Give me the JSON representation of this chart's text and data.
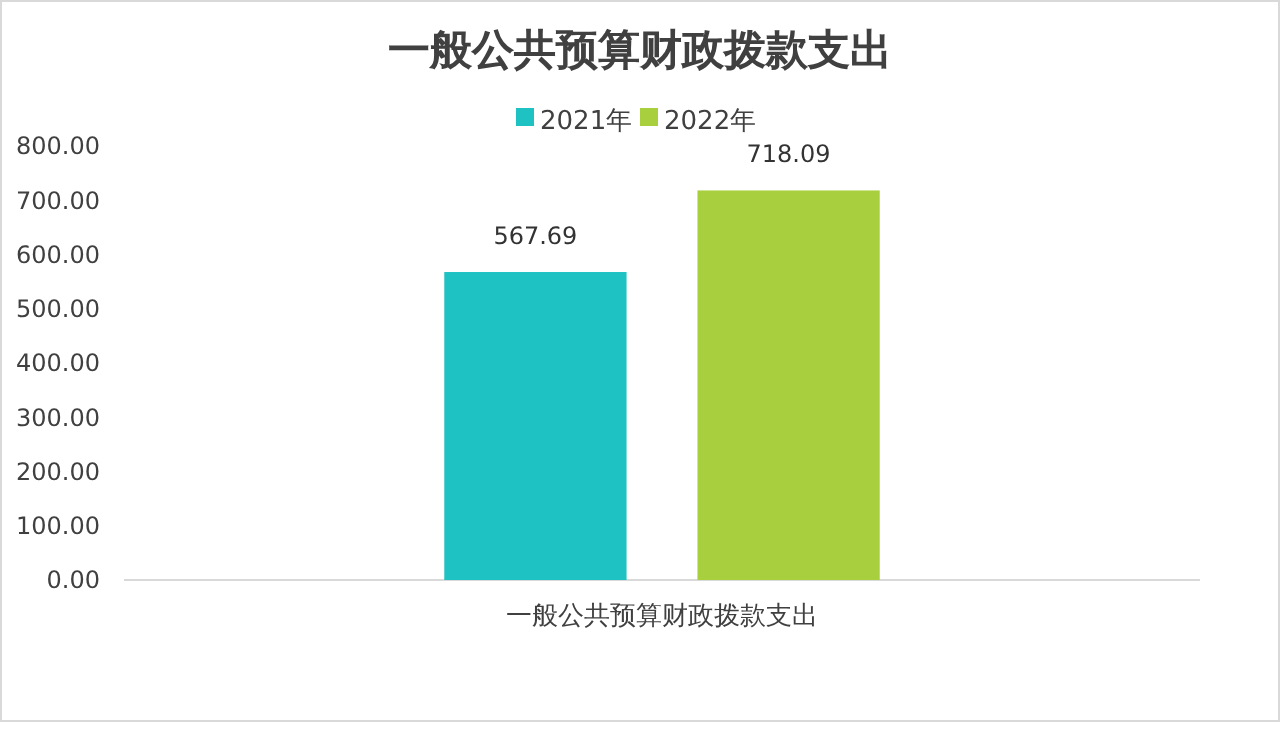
{
  "chart_data": {
    "type": "bar",
    "title": "一般公共预算财政拨款支出",
    "categories": [
      "一般公共预算财政拨款支出"
    ],
    "series": [
      {
        "name": "2021年",
        "color": "#1fc2c2",
        "values": [
          567.69
        ]
      },
      {
        "name": "2022年",
        "color": "#a8cf3e",
        "values": [
          718.09
        ]
      }
    ],
    "ylim": [
      0,
      800
    ],
    "yticks": [
      {
        "value": 0,
        "label": "0.00"
      },
      {
        "value": 100,
        "label": "100.00"
      },
      {
        "value": 200,
        "label": "200.00"
      },
      {
        "value": 300,
        "label": "300.00"
      },
      {
        "value": 400,
        "label": "400.00"
      },
      {
        "value": 500,
        "label": "500.00"
      },
      {
        "value": 600,
        "label": "600.00"
      },
      {
        "value": 700,
        "label": "700.00"
      },
      {
        "value": 800,
        "label": "800.00"
      }
    ],
    "data_labels": true,
    "grid": false,
    "legend": "top"
  }
}
